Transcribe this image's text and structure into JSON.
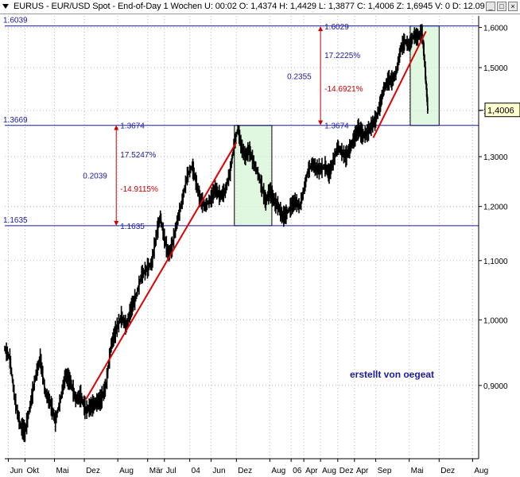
{
  "window": {
    "title": "EURUS - EUR/USD Spot - End-of-Day 1 Wochen  U: 00:02  O: 1,4374  H: 1,4429  L: 1,3877  C: 1,4006  Z: 1,6945  V: 0  D: 12.09",
    "btn_min": "_",
    "btn_max": "□",
    "btn_close": "×"
  },
  "chart_data": {
    "type": "line",
    "series_kind": "weekly-price",
    "x_axis": {
      "ticks": [
        {
          "label": "Jun",
          "t": 2000.42
        },
        {
          "label": "Okt",
          "t": 2000.75
        },
        {
          "label": "Mai",
          "t": 2001.33
        },
        {
          "label": "Dez",
          "t": 2001.92
        },
        {
          "label": "Aug",
          "t": 2002.58
        },
        {
          "label": "Mär",
          "t": 2003.17
        },
        {
          "label": "Jul",
          "t": 2003.5
        },
        {
          "label": "04",
          "t": 2004.0
        },
        {
          "label": "Jun",
          "t": 2004.42
        },
        {
          "label": "Dez",
          "t": 2004.92
        },
        {
          "label": "Aug",
          "t": 2005.58
        },
        {
          "label": "06",
          "t": 2006.0
        },
        {
          "label": "Apr",
          "t": 2006.25
        },
        {
          "label": "Aug",
          "t": 2006.58
        },
        {
          "label": "Dez",
          "t": 2006.92
        },
        {
          "label": "Apr",
          "t": 2007.25
        },
        {
          "label": "Sep",
          "t": 2007.67
        },
        {
          "label": "Mai",
          "t": 2008.33
        },
        {
          "label": "Dez",
          "t": 2008.92
        },
        {
          "label": "Aug",
          "t": 2009.58
        }
      ],
      "range": [
        2000.35,
        2009.7
      ]
    },
    "y_axis": {
      "ticks": [
        {
          "label": "1,6000",
          "v": 1.6
        },
        {
          "label": "1,5000",
          "v": 1.5
        },
        {
          "label": "1,4000",
          "v": 1.4
        },
        {
          "label": "1,3000",
          "v": 1.3
        },
        {
          "label": "1,2000",
          "v": 1.2
        },
        {
          "label": "1,1000",
          "v": 1.1
        },
        {
          "label": "1,0000",
          "v": 1.0
        },
        {
          "label": "0,9000",
          "v": 0.9
        }
      ],
      "scale": "log",
      "range": [
        0.8,
        1.63
      ]
    },
    "grid": true,
    "last_price_label": "1,4006",
    "last_price": 1.4006,
    "price_path": [
      [
        2000.35,
        0.955
      ],
      [
        2000.45,
        0.94
      ],
      [
        2000.55,
        0.88
      ],
      [
        2000.65,
        0.845
      ],
      [
        2000.75,
        0.835
      ],
      [
        2000.85,
        0.87
      ],
      [
        2000.95,
        0.91
      ],
      [
        2001.05,
        0.94
      ],
      [
        2001.15,
        0.89
      ],
      [
        2001.25,
        0.875
      ],
      [
        2001.35,
        0.85
      ],
      [
        2001.45,
        0.88
      ],
      [
        2001.55,
        0.915
      ],
      [
        2001.65,
        0.905
      ],
      [
        2001.75,
        0.88
      ],
      [
        2001.85,
        0.885
      ],
      [
        2001.95,
        0.865
      ],
      [
        2002.05,
        0.87
      ],
      [
        2002.15,
        0.875
      ],
      [
        2002.25,
        0.88
      ],
      [
        2002.35,
        0.9
      ],
      [
        2002.45,
        0.96
      ],
      [
        2002.55,
        0.985
      ],
      [
        2002.65,
        1.005
      ],
      [
        2002.75,
        0.99
      ],
      [
        2002.85,
        1.02
      ],
      [
        2002.95,
        1.04
      ],
      [
        2003.05,
        1.075
      ],
      [
        2003.15,
        1.085
      ],
      [
        2003.25,
        1.095
      ],
      [
        2003.35,
        1.15
      ],
      [
        2003.42,
        1.18
      ],
      [
        2003.5,
        1.14
      ],
      [
        2003.58,
        1.11
      ],
      [
        2003.65,
        1.125
      ],
      [
        2003.75,
        1.17
      ],
      [
        2003.85,
        1.21
      ],
      [
        2003.95,
        1.26
      ],
      [
        2004.05,
        1.28
      ],
      [
        2004.12,
        1.25
      ],
      [
        2004.2,
        1.215
      ],
      [
        2004.3,
        1.2
      ],
      [
        2004.42,
        1.215
      ],
      [
        2004.5,
        1.235
      ],
      [
        2004.6,
        1.22
      ],
      [
        2004.7,
        1.23
      ],
      [
        2004.8,
        1.27
      ],
      [
        2004.87,
        1.32
      ],
      [
        2004.95,
        1.36
      ],
      [
        2005.02,
        1.32
      ],
      [
        2005.1,
        1.3
      ],
      [
        2005.17,
        1.315
      ],
      [
        2005.25,
        1.29
      ],
      [
        2005.33,
        1.27
      ],
      [
        2005.42,
        1.24
      ],
      [
        2005.5,
        1.21
      ],
      [
        2005.58,
        1.23
      ],
      [
        2005.67,
        1.21
      ],
      [
        2005.75,
        1.2
      ],
      [
        2005.83,
        1.18
      ],
      [
        2005.9,
        1.185
      ],
      [
        2006.0,
        1.2
      ],
      [
        2006.08,
        1.21
      ],
      [
        2006.17,
        1.2
      ],
      [
        2006.25,
        1.23
      ],
      [
        2006.33,
        1.27
      ],
      [
        2006.42,
        1.285
      ],
      [
        2006.5,
        1.275
      ],
      [
        2006.58,
        1.275
      ],
      [
        2006.67,
        1.28
      ],
      [
        2006.75,
        1.265
      ],
      [
        2006.83,
        1.29
      ],
      [
        2006.92,
        1.32
      ],
      [
        2007.0,
        1.31
      ],
      [
        2007.08,
        1.3
      ],
      [
        2007.17,
        1.32
      ],
      [
        2007.25,
        1.34
      ],
      [
        2007.33,
        1.36
      ],
      [
        2007.42,
        1.345
      ],
      [
        2007.5,
        1.35
      ],
      [
        2007.58,
        1.365
      ],
      [
        2007.67,
        1.38
      ],
      [
        2007.75,
        1.41
      ],
      [
        2007.83,
        1.45
      ],
      [
        2007.92,
        1.47
      ],
      [
        2008.0,
        1.47
      ],
      [
        2008.08,
        1.49
      ],
      [
        2008.17,
        1.55
      ],
      [
        2008.25,
        1.565
      ],
      [
        2008.33,
        1.555
      ],
      [
        2008.42,
        1.58
      ],
      [
        2008.5,
        1.575
      ],
      [
        2008.58,
        1.59
      ],
      [
        2008.62,
        1.54
      ],
      [
        2008.66,
        1.47
      ],
      [
        2008.7,
        1.4
      ]
    ],
    "trend_lines": [
      {
        "from": [
          2001.95,
          0.88
        ],
        "to": [
          2004.92,
          1.33
        ]
      },
      {
        "from": [
          2007.62,
          1.34
        ],
        "to": [
          2008.66,
          1.59
        ]
      }
    ],
    "levels": [
      {
        "value": 1.6039,
        "left_label": "1.6039"
      },
      {
        "value": 1.3669,
        "left_label": "1.3669",
        "right_label": "1.3674"
      },
      {
        "value": 1.1635,
        "left_label": "1.1635",
        "right_label": "1.1635"
      }
    ],
    "top_marker_label": "1.6029",
    "boxes": [
      {
        "x": [
          2004.88,
          2005.62
        ],
        "y": [
          1.1635,
          1.3669
        ]
      },
      {
        "x": [
          2008.35,
          2008.92
        ],
        "y": [
          1.3669,
          1.6039
        ]
      }
    ],
    "measures": [
      {
        "x": 2002.55,
        "y": [
          1.1635,
          1.3674
        ],
        "pct_up": "17.5247%",
        "diff": "0.2039",
        "pct_down": "-14.9115%"
      },
      {
        "x": 2006.58,
        "y": [
          1.3674,
          1.6029
        ],
        "pct_up": "17.2225%",
        "diff": "0.2355",
        "pct_down": "-14.6921%"
      }
    ],
    "annotation": "erstellt von oegeat"
  }
}
